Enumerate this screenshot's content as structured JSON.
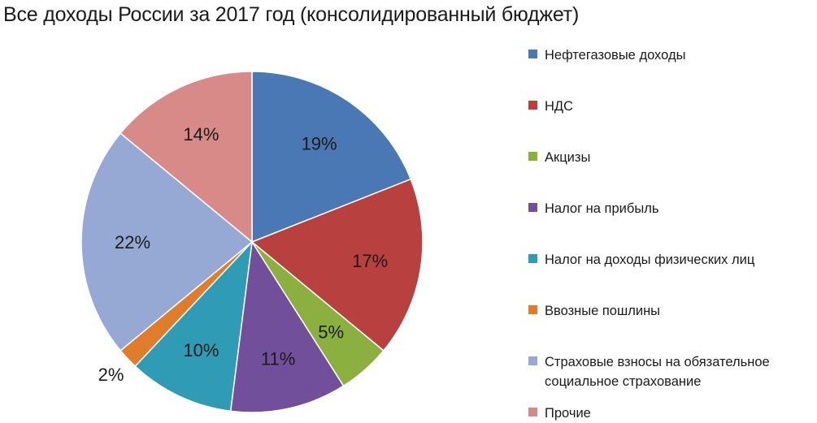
{
  "chart_data": {
    "type": "pie",
    "title": "Все доходы России за 2017 год (консолидированный бюджет)",
    "legend_position": "right",
    "slices": [
      {
        "name": "Нефтегазовые доходы",
        "value": 19,
        "label": "19%",
        "color": "#4a78b4"
      },
      {
        "name": "НДС",
        "value": 17,
        "label": "17%",
        "color": "#b8403f"
      },
      {
        "name": "Акцизы",
        "value": 5,
        "label": "5%",
        "color": "#8cb03f"
      },
      {
        "name": "Налог на прибыль",
        "value": 11,
        "label": "11%",
        "color": "#714f9a"
      },
      {
        "name": "Налог на доходы физических лиц",
        "value": 10,
        "label": "10%",
        "color": "#2f9bb5"
      },
      {
        "name": "Ввозные пошлины",
        "value": 2,
        "label": "2%",
        "color": "#e07d2a"
      },
      {
        "name": "Страховые взносы на обязательное социальное страхование",
        "value": 22,
        "label": "22%",
        "color": "#95a9d4"
      },
      {
        "name": "Прочие",
        "value": 14,
        "label": "14%",
        "color": "#d88a88"
      }
    ]
  }
}
